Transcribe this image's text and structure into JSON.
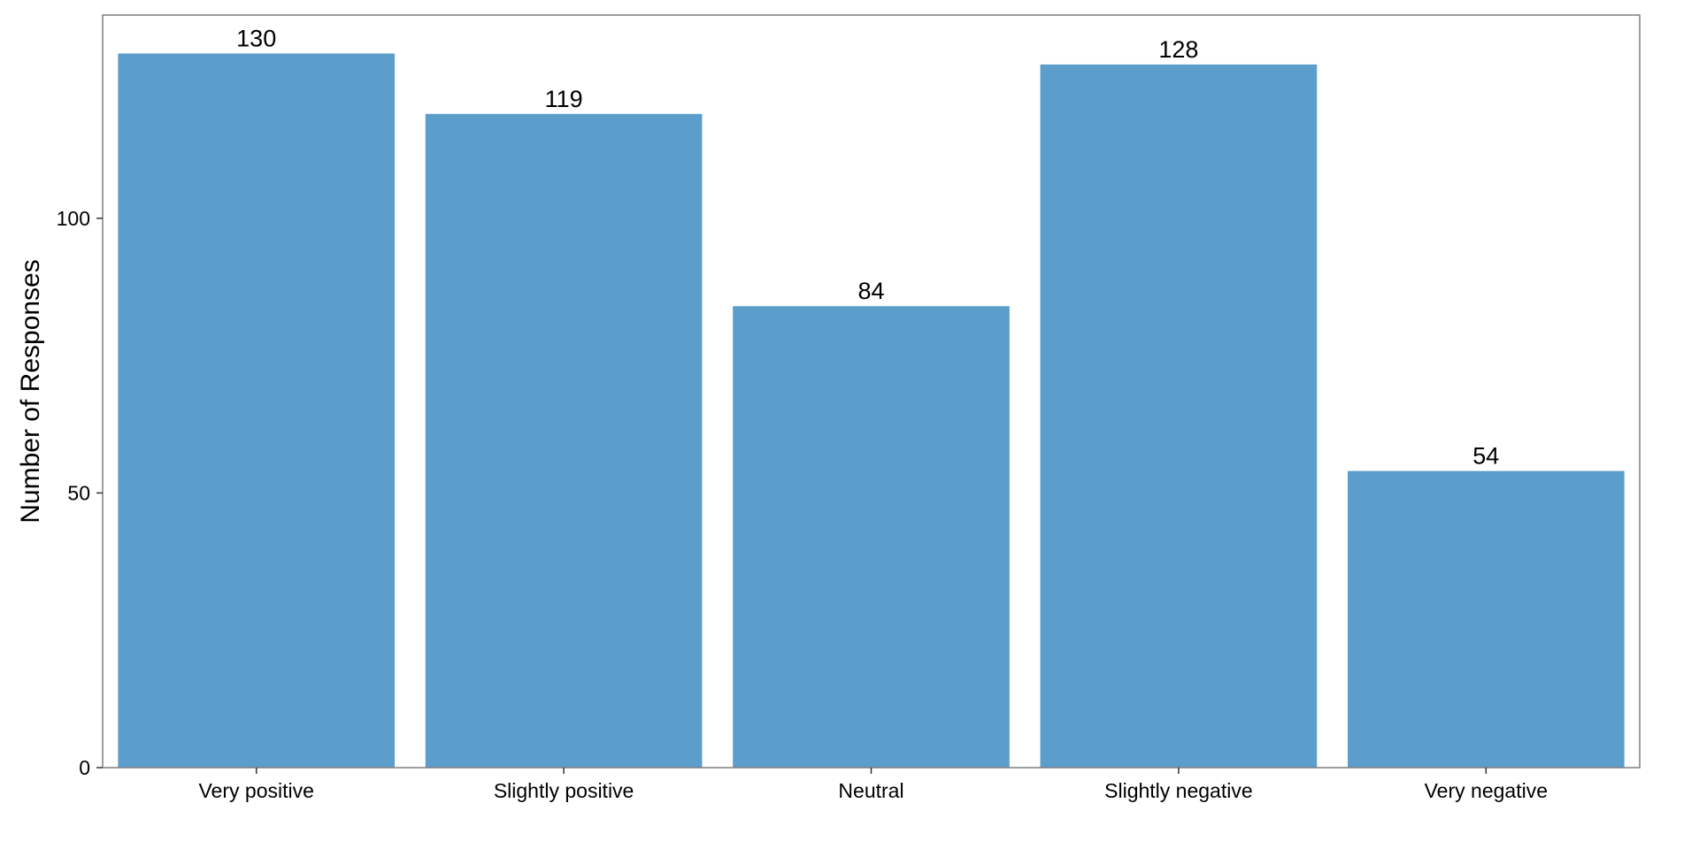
{
  "chart_data": {
    "type": "bar",
    "categories": [
      "Very positive",
      "Slightly positive",
      "Neutral",
      "Slightly negative",
      "Very negative"
    ],
    "values": [
      130,
      119,
      84,
      128,
      54
    ],
    "data_labels": [
      "130",
      "119",
      "84",
      "128",
      "54"
    ],
    "title": "",
    "xlabel": "",
    "ylabel": "Number of Responses",
    "ylim": [
      0,
      137
    ],
    "yticks": [
      0,
      50,
      100
    ],
    "ytick_labels": [
      "0",
      "50",
      "100"
    ],
    "grid": false,
    "legend": "none",
    "bar_color": "#5b9ecb"
  }
}
